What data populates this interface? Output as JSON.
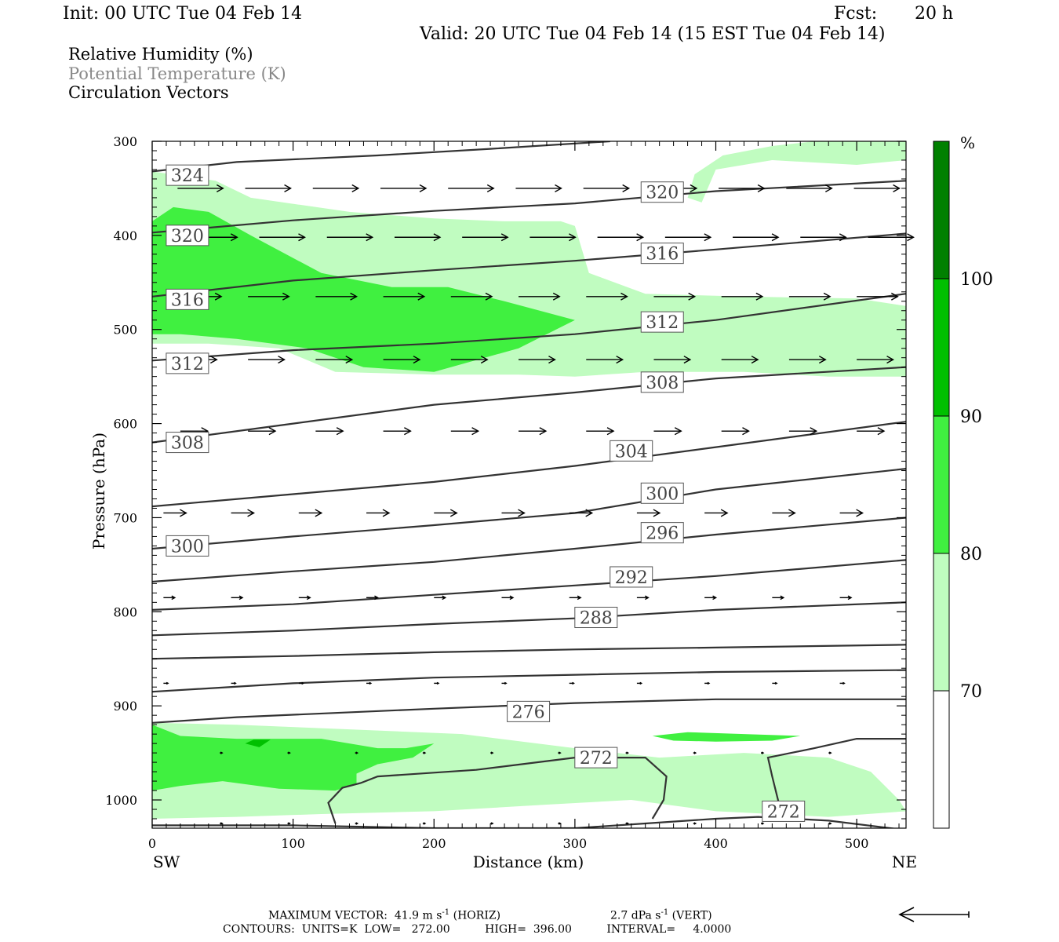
{
  "header": {
    "init": "Init: 00 UTC Tue 04 Feb 14",
    "fcst_label": "Fcst:",
    "fcst_value": "20 h",
    "valid": "Valid: 20 UTC Tue 04 Feb 14 (15 EST Tue 04 Feb 14)"
  },
  "fields": [
    {
      "label": "Relative Humidity (%)",
      "color": "#000000"
    },
    {
      "label": "Potential Temperature (K)",
      "color": "#888888"
    },
    {
      "label": "Circulation Vectors",
      "color": "#000000"
    }
  ],
  "footer": {
    "max_vector": "MAXIMUM VECTOR:  41.9 m s",
    "max_vector_sup": "-1",
    "max_vector_horiz": "(HORIZ)",
    "vert": "2.7 dPa s",
    "vert_sup": "-1",
    "vert_tail": "(VERT)",
    "contours": "CONTOURS:  UNITS=K  LOW=   272.00          HIGH=  396.00          INTERVAL=     4.0000"
  },
  "chart_data": {
    "type": "cross-section",
    "xlabel": "Distance (km)",
    "ylabel": "Pressure (hPa)",
    "xlim": [
      0,
      535
    ],
    "ylim": [
      1030,
      300
    ],
    "xticks": [
      0,
      100,
      200,
      300,
      400,
      500
    ],
    "yticks": [
      300,
      400,
      500,
      600,
      700,
      800,
      900,
      1000
    ],
    "end_labels": {
      "left": "SW",
      "right": "NE"
    },
    "colorbar": {
      "unit": "%",
      "levels": [
        70,
        80,
        90,
        100
      ],
      "colors": [
        "#ffffff",
        "#c0fcc0",
        "#40f040",
        "#00c000",
        "#008000"
      ]
    },
    "rh_regions": [
      {
        "level": 70,
        "points": [
          [
            0,
            332
          ],
          [
            45,
            342
          ],
          [
            70,
            360
          ],
          [
            140,
            375
          ],
          [
            200,
            382
          ],
          [
            250,
            385
          ],
          [
            290,
            385
          ],
          [
            300,
            390
          ],
          [
            310,
            440
          ],
          [
            350,
            462
          ],
          [
            420,
            465
          ],
          [
            500,
            467
          ],
          [
            535,
            475
          ],
          [
            535,
            550
          ],
          [
            480,
            550
          ],
          [
            420,
            545
          ],
          [
            350,
            545
          ],
          [
            300,
            550
          ],
          [
            260,
            548
          ],
          [
            200,
            548
          ],
          [
            130,
            545
          ],
          [
            90,
            520
          ],
          [
            40,
            515
          ],
          [
            0,
            515
          ]
        ]
      },
      {
        "level": 70,
        "points": [
          [
            390,
            365
          ],
          [
            400,
            330
          ],
          [
            440,
            320
          ],
          [
            500,
            325
          ],
          [
            535,
            320
          ],
          [
            535,
            300
          ],
          [
            470,
            300
          ],
          [
            440,
            305
          ],
          [
            405,
            315
          ],
          [
            385,
            335
          ],
          [
            380,
            360
          ]
        ]
      },
      {
        "level": 80,
        "points": [
          [
            0,
            385
          ],
          [
            15,
            370
          ],
          [
            40,
            375
          ],
          [
            70,
            400
          ],
          [
            120,
            440
          ],
          [
            170,
            455
          ],
          [
            210,
            455
          ],
          [
            250,
            470
          ],
          [
            300,
            490
          ],
          [
            260,
            520
          ],
          [
            200,
            545
          ],
          [
            150,
            540
          ],
          [
            110,
            520
          ],
          [
            60,
            510
          ],
          [
            20,
            505
          ],
          [
            0,
            505
          ]
        ]
      },
      {
        "level": 70,
        "points": [
          [
            0,
            918
          ],
          [
            60,
            920
          ],
          [
            140,
            925
          ],
          [
            220,
            930
          ],
          [
            300,
            945
          ],
          [
            360,
            955
          ],
          [
            420,
            950
          ],
          [
            480,
            955
          ],
          [
            510,
            970
          ],
          [
            530,
            1000
          ],
          [
            535,
            1012
          ],
          [
            480,
            1018
          ],
          [
            400,
            1012
          ],
          [
            340,
            1000
          ],
          [
            280,
            1005
          ],
          [
            200,
            1012
          ],
          [
            120,
            1015
          ],
          [
            60,
            1018
          ],
          [
            0,
            1020
          ]
        ]
      },
      {
        "level": 80,
        "points": [
          [
            0,
            920
          ],
          [
            20,
            932
          ],
          [
            60,
            935
          ],
          [
            120,
            935
          ],
          [
            160,
            945
          ],
          [
            180,
            945
          ],
          [
            200,
            940
          ],
          [
            185,
            955
          ],
          [
            160,
            962
          ],
          [
            145,
            972
          ],
          [
            145,
            983
          ],
          [
            130,
            990
          ],
          [
            90,
            988
          ],
          [
            50,
            980
          ],
          [
            20,
            985
          ],
          [
            0,
            990
          ]
        ]
      },
      {
        "level": 80,
        "points": [
          [
            355,
            932
          ],
          [
            380,
            928
          ],
          [
            420,
            930
          ],
          [
            460,
            932
          ],
          [
            440,
            937
          ],
          [
            400,
            938
          ],
          [
            370,
            937
          ]
        ]
      },
      {
        "level": 90,
        "points": [
          [
            66,
            940
          ],
          [
            72,
            936
          ],
          [
            84,
            936
          ],
          [
            76,
            944
          ]
        ]
      }
    ],
    "theta_isentropes": [
      {
        "k": 324,
        "points": [
          [
            0,
            332
          ],
          [
            60,
            322
          ],
          [
            160,
            315
          ],
          [
            240,
            308
          ],
          [
            325,
            300
          ]
        ]
      },
      {
        "k": 320,
        "points": [
          [
            0,
            397
          ],
          [
            100,
            384
          ],
          [
            200,
            374
          ],
          [
            300,
            366
          ],
          [
            400,
            353
          ],
          [
            535,
            342
          ]
        ]
      },
      {
        "k": 316,
        "points": [
          [
            0,
            465
          ],
          [
            100,
            448
          ],
          [
            200,
            437
          ],
          [
            300,
            427
          ],
          [
            400,
            415
          ],
          [
            535,
            398
          ]
        ]
      },
      {
        "k": 312,
        "points": [
          [
            0,
            533
          ],
          [
            100,
            522
          ],
          [
            200,
            515
          ],
          [
            300,
            505
          ],
          [
            400,
            490
          ],
          [
            535,
            462
          ]
        ]
      },
      {
        "k": 308,
        "points": [
          [
            0,
            620
          ],
          [
            100,
            600
          ],
          [
            200,
            580
          ],
          [
            300,
            567
          ],
          [
            400,
            552
          ],
          [
            535,
            540
          ]
        ]
      },
      {
        "k": 304,
        "points": [
          [
            0,
            688
          ],
          [
            100,
            675
          ],
          [
            200,
            662
          ],
          [
            300,
            645
          ],
          [
            400,
            625
          ],
          [
            535,
            598
          ]
        ]
      },
      {
        "k": 300,
        "points": [
          [
            0,
            733
          ],
          [
            100,
            720
          ],
          [
            200,
            708
          ],
          [
            300,
            695
          ],
          [
            400,
            670
          ],
          [
            535,
            648
          ]
        ]
      },
      {
        "k": 296,
        "points": [
          [
            0,
            768
          ],
          [
            100,
            757
          ],
          [
            200,
            747
          ],
          [
            300,
            733
          ],
          [
            400,
            718
          ],
          [
            535,
            700
          ]
        ]
      },
      {
        "k": 292,
        "points": [
          [
            0,
            798
          ],
          [
            100,
            792
          ],
          [
            200,
            782
          ],
          [
            300,
            772
          ],
          [
            400,
            762
          ],
          [
            535,
            745
          ]
        ]
      },
      {
        "k": 288,
        "points": [
          [
            0,
            825
          ],
          [
            100,
            820
          ],
          [
            200,
            813
          ],
          [
            300,
            807
          ],
          [
            400,
            798
          ],
          [
            535,
            790
          ]
        ]
      },
      {
        "k": 284,
        "points": [
          [
            0,
            850
          ],
          [
            100,
            847
          ],
          [
            200,
            843
          ],
          [
            300,
            840
          ],
          [
            400,
            838
          ],
          [
            535,
            835
          ]
        ]
      },
      {
        "k": 280,
        "points": [
          [
            0,
            885
          ],
          [
            100,
            876
          ],
          [
            200,
            870
          ],
          [
            300,
            867
          ],
          [
            400,
            864
          ],
          [
            535,
            862
          ]
        ]
      },
      {
        "k": 276,
        "points": [
          [
            0,
            918
          ],
          [
            60,
            912
          ],
          [
            200,
            903
          ],
          [
            300,
            897
          ],
          [
            400,
            893
          ],
          [
            535,
            893
          ]
        ]
      },
      {
        "k": 272,
        "points": [
          [
            130,
            1025
          ],
          [
            125,
            1003
          ],
          [
            135,
            987
          ],
          [
            148,
            982
          ],
          [
            160,
            975
          ],
          [
            230,
            968
          ],
          [
            300,
            955
          ],
          [
            350,
            955
          ],
          [
            365,
            975
          ],
          [
            363,
            1000
          ],
          [
            355,
            1020
          ]
        ]
      },
      {
        "k": 272,
        "points": [
          [
            445,
            1005
          ],
          [
            440,
            975
          ],
          [
            437,
            955
          ],
          [
            470,
            945
          ],
          [
            500,
            935
          ],
          [
            535,
            935
          ]
        ]
      },
      {
        "k": 268,
        "points": [
          [
            0,
            1027
          ],
          [
            100,
            1027
          ],
          [
            200,
            1030
          ],
          [
            300,
            1030
          ],
          [
            350,
            1025
          ],
          [
            400,
            1020
          ],
          [
            430,
            1018
          ],
          [
            480,
            1022
          ],
          [
            535,
            1032
          ]
        ]
      }
    ],
    "theta_labels": [
      {
        "text": "324",
        "x": 25,
        "p": 336
      },
      {
        "text": "320",
        "x": 25,
        "p": 400
      },
      {
        "text": "316",
        "x": 25,
        "p": 468
      },
      {
        "text": "312",
        "x": 25,
        "p": 536
      },
      {
        "text": "308",
        "x": 25,
        "p": 620
      },
      {
        "text": "300",
        "x": 25,
        "p": 730
      },
      {
        "text": "320",
        "x": 362,
        "p": 354
      },
      {
        "text": "316",
        "x": 362,
        "p": 419
      },
      {
        "text": "312",
        "x": 362,
        "p": 492
      },
      {
        "text": "308",
        "x": 362,
        "p": 556
      },
      {
        "text": "304",
        "x": 340,
        "p": 629
      },
      {
        "text": "300",
        "x": 362,
        "p": 674
      },
      {
        "text": "296",
        "x": 362,
        "p": 716
      },
      {
        "text": "292",
        "x": 340,
        "p": 763
      },
      {
        "text": "288",
        "x": 315,
        "p": 806
      },
      {
        "text": "276",
        "x": 267,
        "p": 906
      },
      {
        "text": "272",
        "x": 315,
        "p": 955
      },
      {
        "text": "272",
        "x": 448,
        "p": 1012
      }
    ],
    "vector_rows": [
      {
        "p": 350,
        "x_start": 18,
        "x_step": 48,
        "count": 11,
        "u": 20
      },
      {
        "p": 402,
        "x_start": 28,
        "x_step": 48,
        "count": 11,
        "u": 20
      },
      {
        "p": 465,
        "x_start": 20,
        "x_step": 48,
        "count": 11,
        "u": 18
      },
      {
        "p": 532,
        "x_start": 20,
        "x_step": 48,
        "count": 11,
        "u": 16
      },
      {
        "p": 608,
        "x_start": 20,
        "x_step": 48,
        "count": 11,
        "u": 12
      },
      {
        "p": 695,
        "x_start": 8,
        "x_step": 48,
        "count": 11,
        "u": 10
      },
      {
        "p": 785,
        "x_start": 8,
        "x_step": 48,
        "count": 11,
        "u": 5
      },
      {
        "p": 876,
        "x_start": 8,
        "x_step": 48,
        "count": 11,
        "u": 2
      },
      {
        "p": 950,
        "x_start": 48,
        "x_step": 48,
        "count": 10,
        "u": 1
      },
      {
        "p": 1025,
        "x_start": 48,
        "x_step": 48,
        "count": 10,
        "u": 1
      }
    ]
  }
}
